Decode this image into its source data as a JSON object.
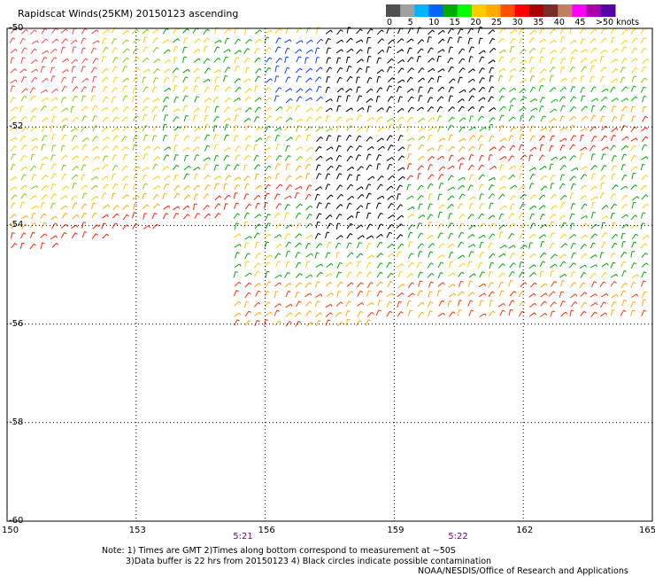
{
  "title": "Rapidscat Winds(25KM) 20150123 ascending",
  "map_data": {
    "lon_range": [
      150,
      165
    ],
    "lat_range": [
      -60,
      -50
    ],
    "lon_ticks": [
      "150",
      "153",
      "156",
      "159",
      "162",
      "165"
    ],
    "lat_ticks": [
      "-50",
      "-52",
      "-54",
      "-56",
      "-58",
      "-60"
    ],
    "grid": "dotted",
    "wind_units": "knots"
  },
  "color_scale": {
    "labels": [
      "0",
      "5",
      "10",
      "15",
      "20",
      "25",
      "30",
      "35",
      "40",
      "45",
      ">50 knots"
    ],
    "colors": [
      "#505050",
      "#a0a0a0",
      "#00b4ff",
      "#0064ff",
      "#00aa00",
      "#00ff00",
      "#ffcc00",
      "#ffaa00",
      "#ff5000",
      "#ff0000",
      "#aa0000",
      "#7b2b2b",
      "#c08060",
      "#ff00ff",
      "#aa00aa",
      "#5500aa"
    ]
  },
  "swath_times": [
    {
      "label": "5:21",
      "lon": 155.5
    },
    {
      "label": "5:22",
      "lon": 160.5
    }
  ],
  "notes": {
    "line1": "Note: 1) Times are GMT 2)Times along bottom correspond to measurement at ~50S",
    "line2": "3)Data buffer is 22 hrs from 20150123 4) Black circles indicate possible contamination",
    "credit": "NOAA/NESDIS/Office of Research and Applications"
  }
}
